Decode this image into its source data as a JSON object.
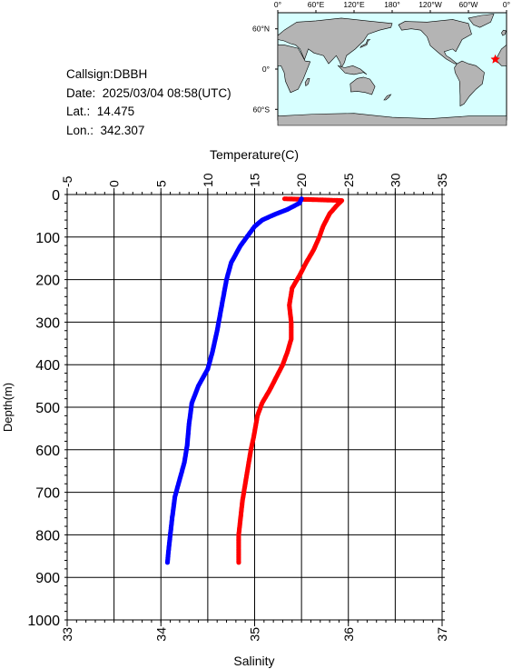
{
  "info": {
    "callsign_label": "Callsign:",
    "callsign": "DBBH",
    "date_label": "Date:",
    "date": "2025/03/04 08:58(UTC)",
    "lat_label": "Lat.:",
    "lat": "14.475",
    "lon_label": "Lon.:",
    "lon": "342.307"
  },
  "map": {
    "lon_labels": [
      "0°",
      "60°E",
      "120°E",
      "180°",
      "120°W",
      "60°W",
      "0°"
    ],
    "lat_labels": [
      "60°N",
      "0°",
      "60°S"
    ],
    "ocean_color": "#d7ffff",
    "land_color": "#b4b4b4",
    "marker_color": "#ff0000"
  },
  "chart_data": {
    "type": "line",
    "title": "",
    "top_axis": {
      "label": "Temperature(C)",
      "range": [
        -5,
        35
      ],
      "ticks": [
        "-5",
        "0",
        "5",
        "10",
        "15",
        "20",
        "25",
        "30",
        "35"
      ]
    },
    "bottom_axis": {
      "label": "Salinity",
      "range": [
        33,
        37
      ],
      "ticks": [
        "33",
        "34",
        "35",
        "36",
        "37"
      ]
    },
    "y_axis": {
      "label": "Depth(m)",
      "range": [
        0,
        1000
      ],
      "inverted": true,
      "ticks": [
        "0",
        "100",
        "200",
        "300",
        "400",
        "500",
        "600",
        "700",
        "800",
        "900",
        "1000"
      ]
    },
    "grid": true,
    "series": [
      {
        "name": "Temperature",
        "color": "#ff0000",
        "axis": "top",
        "values": [
          [
            18.2,
            10
          ],
          [
            24.3,
            14
          ],
          [
            23.8,
            25
          ],
          [
            23.0,
            45
          ],
          [
            22.3,
            75
          ],
          [
            21.9,
            100
          ],
          [
            21.3,
            130
          ],
          [
            20.5,
            160
          ],
          [
            19.8,
            190
          ],
          [
            19.0,
            220
          ],
          [
            18.7,
            260
          ],
          [
            18.9,
            300
          ],
          [
            18.9,
            340
          ],
          [
            18.5,
            370
          ],
          [
            18.0,
            400
          ],
          [
            17.3,
            430
          ],
          [
            16.6,
            460
          ],
          [
            15.8,
            490
          ],
          [
            15.3,
            520
          ],
          [
            14.9,
            570
          ],
          [
            14.6,
            600
          ],
          [
            14.3,
            640
          ],
          [
            14.0,
            680
          ],
          [
            13.7,
            720
          ],
          [
            13.5,
            760
          ],
          [
            13.3,
            800
          ],
          [
            13.3,
            830
          ],
          [
            13.3,
            865
          ]
        ]
      },
      {
        "name": "Salinity",
        "color": "#0000ff",
        "axis": "bottom",
        "values": [
          [
            35.5,
            10
          ],
          [
            35.48,
            20
          ],
          [
            35.35,
            35
          ],
          [
            35.2,
            48
          ],
          [
            35.08,
            60
          ],
          [
            35.0,
            75
          ],
          [
            34.95,
            90
          ],
          [
            34.85,
            120
          ],
          [
            34.75,
            160
          ],
          [
            34.7,
            200
          ],
          [
            34.65,
            260
          ],
          [
            34.6,
            320
          ],
          [
            34.55,
            370
          ],
          [
            34.5,
            410
          ],
          [
            34.4,
            450
          ],
          [
            34.33,
            490
          ],
          [
            34.3,
            540
          ],
          [
            34.28,
            590
          ],
          [
            34.25,
            630
          ],
          [
            34.2,
            670
          ],
          [
            34.15,
            710
          ],
          [
            34.12,
            760
          ],
          [
            34.1,
            800
          ],
          [
            34.08,
            840
          ],
          [
            34.07,
            865
          ]
        ]
      }
    ]
  }
}
